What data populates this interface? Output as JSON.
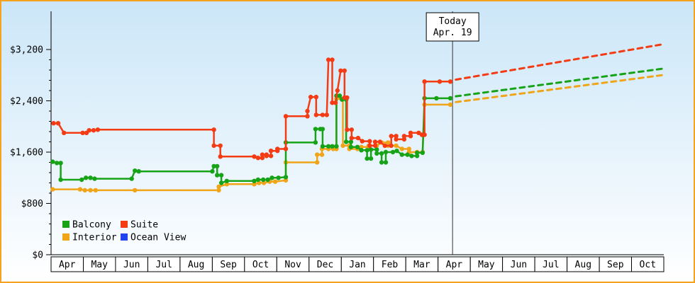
{
  "frame": {
    "border_color": "#f5a21f"
  },
  "chart_data": {
    "type": "line",
    "background": {
      "top": "#cbe6f8",
      "bottom": "#ffffff"
    },
    "y_axis": {
      "max": 3200,
      "minor_step": 160,
      "ticks": [
        {
          "value": 0,
          "label": "$0"
        },
        {
          "value": 800,
          "label": "$800"
        },
        {
          "value": 1600,
          "label": "$1,600"
        },
        {
          "value": 2400,
          "label": "$2,400"
        },
        {
          "value": 3200,
          "label": "$3,200"
        }
      ]
    },
    "x_axis": {
      "months": [
        "Apr",
        "May",
        "Jun",
        "Jul",
        "Aug",
        "Sep",
        "Oct",
        "Nov",
        "Dec",
        "Jan",
        "Feb",
        "Mar",
        "Apr",
        "May",
        "Jun",
        "Jul",
        "Aug",
        "Sep",
        "Oct"
      ]
    },
    "today": {
      "month_position": 12.45,
      "line1": "Today",
      "line2": "Apr. 19",
      "line_color": "#333333"
    },
    "series": [
      {
        "name": "Balcony",
        "color": "#17a317",
        "points": [
          [
            0.05,
            1450
          ],
          [
            0.18,
            1430
          ],
          [
            0.3,
            1430
          ],
          [
            0.3,
            1170
          ],
          [
            0.95,
            1170
          ],
          [
            1.08,
            1200
          ],
          [
            1.22,
            1200
          ],
          [
            1.35,
            1185
          ],
          [
            2.5,
            1185
          ],
          [
            2.6,
            1310
          ],
          [
            2.72,
            1300
          ],
          [
            5.0,
            1300
          ],
          [
            5.05,
            1380
          ],
          [
            5.15,
            1380
          ],
          [
            5.15,
            1240
          ],
          [
            5.28,
            1240
          ],
          [
            5.28,
            1120
          ],
          [
            5.45,
            1150
          ],
          [
            6.3,
            1150
          ],
          [
            6.42,
            1170
          ],
          [
            6.58,
            1170
          ],
          [
            6.72,
            1170
          ],
          [
            6.85,
            1200
          ],
          [
            7.05,
            1200
          ],
          [
            7.28,
            1210
          ],
          [
            7.28,
            1750
          ],
          [
            8.2,
            1750
          ],
          [
            8.2,
            1960
          ],
          [
            8.35,
            1960
          ],
          [
            8.42,
            1960
          ],
          [
            8.42,
            1690
          ],
          [
            8.6,
            1690
          ],
          [
            8.72,
            1690
          ],
          [
            8.85,
            1690
          ],
          [
            8.85,
            2480
          ],
          [
            8.95,
            2480
          ],
          [
            9.02,
            2420
          ],
          [
            9.15,
            2420
          ],
          [
            9.15,
            1760
          ],
          [
            9.3,
            1760
          ],
          [
            9.3,
            1680
          ],
          [
            9.5,
            1680
          ],
          [
            9.62,
            1630
          ],
          [
            9.8,
            1630
          ],
          [
            9.8,
            1500
          ],
          [
            9.92,
            1500
          ],
          [
            9.92,
            1640
          ],
          [
            10.1,
            1640
          ],
          [
            10.1,
            1580
          ],
          [
            10.25,
            1580
          ],
          [
            10.25,
            1440
          ],
          [
            10.38,
            1440
          ],
          [
            10.38,
            1600
          ],
          [
            10.6,
            1600
          ],
          [
            10.72,
            1620
          ],
          [
            10.88,
            1560
          ],
          [
            11.05,
            1560
          ],
          [
            11.18,
            1540
          ],
          [
            11.35,
            1540
          ],
          [
            11.35,
            1590
          ],
          [
            11.52,
            1590
          ],
          [
            11.58,
            2440
          ],
          [
            11.95,
            2440
          ],
          [
            12.38,
            2440
          ]
        ]
      },
      {
        "name": "Suite",
        "color": "#f43b14",
        "points": [
          [
            0.08,
            2050
          ],
          [
            0.22,
            2050
          ],
          [
            0.4,
            1900
          ],
          [
            0.98,
            1900
          ],
          [
            1.1,
            1900
          ],
          [
            1.18,
            1940
          ],
          [
            1.32,
            1940
          ],
          [
            1.45,
            1950
          ],
          [
            5.05,
            1950
          ],
          [
            5.05,
            1700
          ],
          [
            5.25,
            1700
          ],
          [
            5.25,
            1530
          ],
          [
            6.3,
            1530
          ],
          [
            6.42,
            1510
          ],
          [
            6.55,
            1510
          ],
          [
            6.55,
            1560
          ],
          [
            6.68,
            1560
          ],
          [
            6.68,
            1540
          ],
          [
            6.82,
            1540
          ],
          [
            6.82,
            1620
          ],
          [
            7.02,
            1620
          ],
          [
            7.02,
            1650
          ],
          [
            7.28,
            1650
          ],
          [
            7.28,
            2160
          ],
          [
            7.95,
            2160
          ],
          [
            7.95,
            2240
          ],
          [
            8.05,
            2460
          ],
          [
            8.22,
            2460
          ],
          [
            8.22,
            2180
          ],
          [
            8.42,
            2180
          ],
          [
            8.55,
            2180
          ],
          [
            8.6,
            3040
          ],
          [
            8.72,
            3040
          ],
          [
            8.72,
            2370
          ],
          [
            8.82,
            2370
          ],
          [
            8.88,
            2560
          ],
          [
            8.98,
            2870
          ],
          [
            9.1,
            2870
          ],
          [
            9.1,
            2450
          ],
          [
            9.18,
            2450
          ],
          [
            9.18,
            1950
          ],
          [
            9.32,
            1950
          ],
          [
            9.32,
            1820
          ],
          [
            9.52,
            1820
          ],
          [
            9.65,
            1770
          ],
          [
            9.88,
            1770
          ],
          [
            9.88,
            1700
          ],
          [
            10.05,
            1700
          ],
          [
            10.05,
            1760
          ],
          [
            10.2,
            1760
          ],
          [
            10.35,
            1700
          ],
          [
            10.55,
            1700
          ],
          [
            10.55,
            1850
          ],
          [
            10.7,
            1850
          ],
          [
            10.7,
            1800
          ],
          [
            10.95,
            1800
          ],
          [
            10.95,
            1850
          ],
          [
            11.15,
            1850
          ],
          [
            11.15,
            1900
          ],
          [
            11.4,
            1900
          ],
          [
            11.5,
            1870
          ],
          [
            11.58,
            1870
          ],
          [
            11.58,
            2700
          ],
          [
            12.05,
            2700
          ],
          [
            12.38,
            2700
          ]
        ]
      },
      {
        "name": "Interior",
        "color": "#f0a418",
        "points": [
          [
            0.05,
            1020
          ],
          [
            0.9,
            1020
          ],
          [
            1.05,
            1005
          ],
          [
            1.22,
            1005
          ],
          [
            1.38,
            1005
          ],
          [
            2.6,
            1005
          ],
          [
            5.2,
            1005
          ],
          [
            5.2,
            1060
          ],
          [
            5.45,
            1100
          ],
          [
            6.3,
            1100
          ],
          [
            6.45,
            1120
          ],
          [
            6.6,
            1120
          ],
          [
            6.78,
            1140
          ],
          [
            6.95,
            1140
          ],
          [
            7.28,
            1160
          ],
          [
            7.28,
            1440
          ],
          [
            8.25,
            1440
          ],
          [
            8.25,
            1560
          ],
          [
            8.4,
            1560
          ],
          [
            8.4,
            1650
          ],
          [
            8.6,
            1650
          ],
          [
            8.75,
            1650
          ],
          [
            8.85,
            1650
          ],
          [
            8.85,
            2430
          ],
          [
            9.05,
            2430
          ],
          [
            9.05,
            1700
          ],
          [
            9.25,
            1700
          ],
          [
            9.25,
            1650
          ],
          [
            9.5,
            1650
          ],
          [
            9.62,
            1680
          ],
          [
            9.85,
            1680
          ],
          [
            9.85,
            1700
          ],
          [
            10.1,
            1700
          ],
          [
            10.25,
            1750
          ],
          [
            10.45,
            1750
          ],
          [
            10.45,
            1700
          ],
          [
            10.7,
            1700
          ],
          [
            10.88,
            1650
          ],
          [
            11.1,
            1650
          ],
          [
            11.1,
            1600
          ],
          [
            11.35,
            1600
          ],
          [
            11.52,
            1600
          ],
          [
            11.58,
            2340
          ],
          [
            12.38,
            2340
          ]
        ]
      },
      {
        "name": "Ocean View",
        "color": "#2244ee",
        "points": []
      }
    ],
    "projections": [
      {
        "series": "Suite",
        "color": "#f43b14",
        "start": [
          12.55,
          2730
        ],
        "end": [
          18.95,
          3280
        ]
      },
      {
        "series": "Balcony",
        "color": "#17a317",
        "start": [
          12.55,
          2470
        ],
        "end": [
          18.95,
          2900
        ]
      },
      {
        "series": "Interior",
        "color": "#f0a418",
        "start": [
          12.55,
          2380
        ],
        "end": [
          18.95,
          2800
        ]
      }
    ],
    "legend": {
      "items": [
        {
          "label": "Balcony",
          "color": "#17a317"
        },
        {
          "label": "Suite",
          "color": "#f43b14"
        },
        {
          "label": "Interior",
          "color": "#f0a418"
        },
        {
          "label": "Ocean View",
          "color": "#2244ee"
        }
      ]
    }
  }
}
